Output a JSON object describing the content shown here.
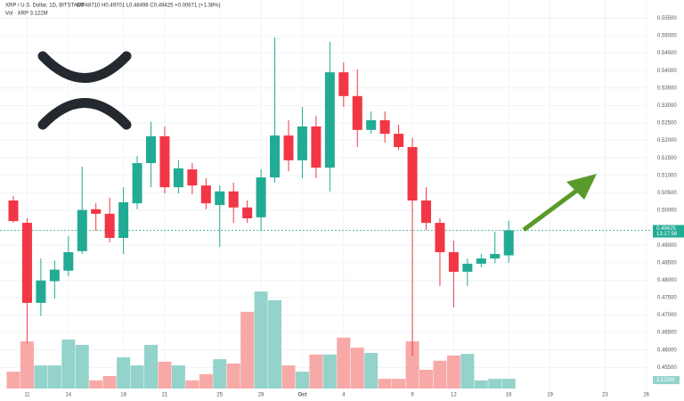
{
  "chart_data": {
    "type": "candlestick",
    "title": "XRP / U.S. Dollar, 1D, BITSTAMP",
    "ohlc_header": "O0.48710 H0.49701 L0.48498 C0.49425 +0.00671 (+1.38%)",
    "volume_header": "Vol · XRP 3.122M",
    "volume_last_label": "3.122M",
    "last_price": {
      "value": 0.49425,
      "label": "0.49425"
    },
    "countdown": "13:17:56",
    "categories": [
      null,
      "11",
      null,
      null,
      "14",
      null,
      null,
      null,
      "18",
      null,
      null,
      "21",
      null,
      null,
      null,
      "25",
      null,
      null,
      "28",
      null,
      null,
      "Oct",
      null,
      null,
      "4",
      null,
      null,
      null,
      null,
      "9",
      null,
      null,
      "12",
      null,
      null,
      null,
      "16",
      null,
      null,
      "19",
      null,
      null,
      null,
      "23",
      null,
      null,
      "26"
    ],
    "open": [
      0.5028,
      0.4964,
      0.4735,
      0.4797,
      0.4827,
      0.4883,
      0.5003,
      0.499,
      0.4921,
      0.502,
      0.5135,
      0.5212,
      0.5066,
      0.5117,
      0.5071,
      0.5015,
      0.5054,
      0.5008,
      0.498,
      0.5094,
      0.5214,
      0.5143,
      0.524,
      0.5122,
      0.5395,
      0.5327,
      0.523,
      0.5258,
      0.5219,
      0.5181,
      0.5028,
      0.4964,
      0.488,
      0.4824,
      0.4847,
      0.4862,
      0.4871,
      null,
      null,
      null,
      null,
      null,
      null,
      null,
      null,
      null,
      null
    ],
    "high": [
      0.504,
      0.4977,
      0.4862,
      0.4856,
      0.4926,
      0.5125,
      0.502,
      0.5036,
      0.5066,
      0.5156,
      0.5253,
      0.524,
      0.5143,
      0.5135,
      0.5092,
      0.5071,
      0.5079,
      0.5028,
      0.5117,
      0.5495,
      0.5258,
      0.5296,
      0.527,
      0.5482,
      0.5423,
      0.5403,
      0.5283,
      0.5283,
      0.5245,
      0.5207,
      0.5066,
      0.4977,
      0.4913,
      0.4862,
      0.4875,
      0.4939,
      0.49701,
      null,
      null,
      null,
      null,
      null,
      null,
      null,
      null,
      null,
      null
    ],
    "low": [
      0.4965,
      0.462,
      0.4697,
      0.4747,
      0.4811,
      0.4875,
      0.4941,
      0.4908,
      0.4875,
      0.5003,
      0.5066,
      0.5048,
      0.5048,
      0.5046,
      0.5003,
      0.4895,
      0.4964,
      0.4964,
      0.4941,
      0.5079,
      0.5112,
      0.5092,
      0.5092,
      0.5054,
      0.5296,
      0.5181,
      0.5219,
      0.5194,
      0.5173,
      0.4582,
      0.4944,
      0.4783,
      0.4722,
      0.4783,
      0.4837,
      0.4849,
      0.48498,
      null,
      null,
      null,
      null,
      null,
      null,
      null,
      null,
      null,
      null
    ],
    "close": [
      0.4969,
      0.4735,
      0.4799,
      0.483,
      0.488,
      0.5001,
      0.499,
      0.4921,
      0.5023,
      0.5135,
      0.5212,
      0.5066,
      0.512,
      0.5071,
      0.502,
      0.5054,
      0.5008,
      0.4977,
      0.5094,
      0.5214,
      0.5143,
      0.524,
      0.5122,
      0.5395,
      0.5327,
      0.523,
      0.5258,
      0.5219,
      0.5181,
      0.5028,
      0.4964,
      0.488,
      0.4824,
      0.4847,
      0.4862,
      0.4875,
      0.49425,
      null,
      null,
      null,
      null,
      null,
      null,
      null,
      null,
      null,
      null
    ],
    "volume": [
      5.4,
      15.1,
      7.4,
      7.4,
      15.7,
      14,
      2.6,
      4,
      10,
      7.4,
      14,
      8.6,
      7.4,
      2.6,
      4.6,
      9.4,
      8,
      24.6,
      31.1,
      28.3,
      7.4,
      5.4,
      10.9,
      10.9,
      16.3,
      13.1,
      11.4,
      3.1,
      3.1,
      15.1,
      6,
      8.9,
      10.6,
      11.1,
      2.6,
      3.1,
      3.122,
      null,
      null,
      null,
      null,
      null,
      null,
      null,
      null,
      null,
      null
    ],
    "up_color": "#22ab94",
    "down_color": "#f23645",
    "up_volume_color": "#93d3cb",
    "down_volume_color": "#f7a9a7",
    "ylim": [
      0.4454,
      0.5602
    ],
    "yticks": [
      {
        "value": 0.455,
        "label": "0.45500"
      },
      {
        "value": 0.46,
        "label": "0.46000"
      },
      {
        "value": 0.465,
        "label": "0.46500"
      },
      {
        "value": 0.47,
        "label": "0.47000"
      },
      {
        "value": 0.475,
        "label": "0.47500"
      },
      {
        "value": 0.48,
        "label": "0.48000"
      },
      {
        "value": 0.485,
        "label": "0.48500"
      },
      {
        "value": 0.49,
        "label": "0.49000"
      },
      {
        "value": 0.5,
        "label": "0.50000"
      },
      {
        "value": 0.505,
        "label": "0.50500"
      },
      {
        "value": 0.51,
        "label": "0.51000"
      },
      {
        "value": 0.515,
        "label": "0.51500"
      },
      {
        "value": 0.52,
        "label": "0.52000"
      },
      {
        "value": 0.525,
        "label": "0.52500"
      },
      {
        "value": 0.53,
        "label": "0.53000"
      },
      {
        "value": 0.535,
        "label": "0.53500"
      },
      {
        "value": 0.54,
        "label": "0.54000"
      },
      {
        "value": 0.545,
        "label": "0.54500"
      },
      {
        "value": 0.55,
        "label": "0.55000"
      },
      {
        "value": 0.555,
        "label": "0.55500"
      }
    ],
    "grid": true
  }
}
